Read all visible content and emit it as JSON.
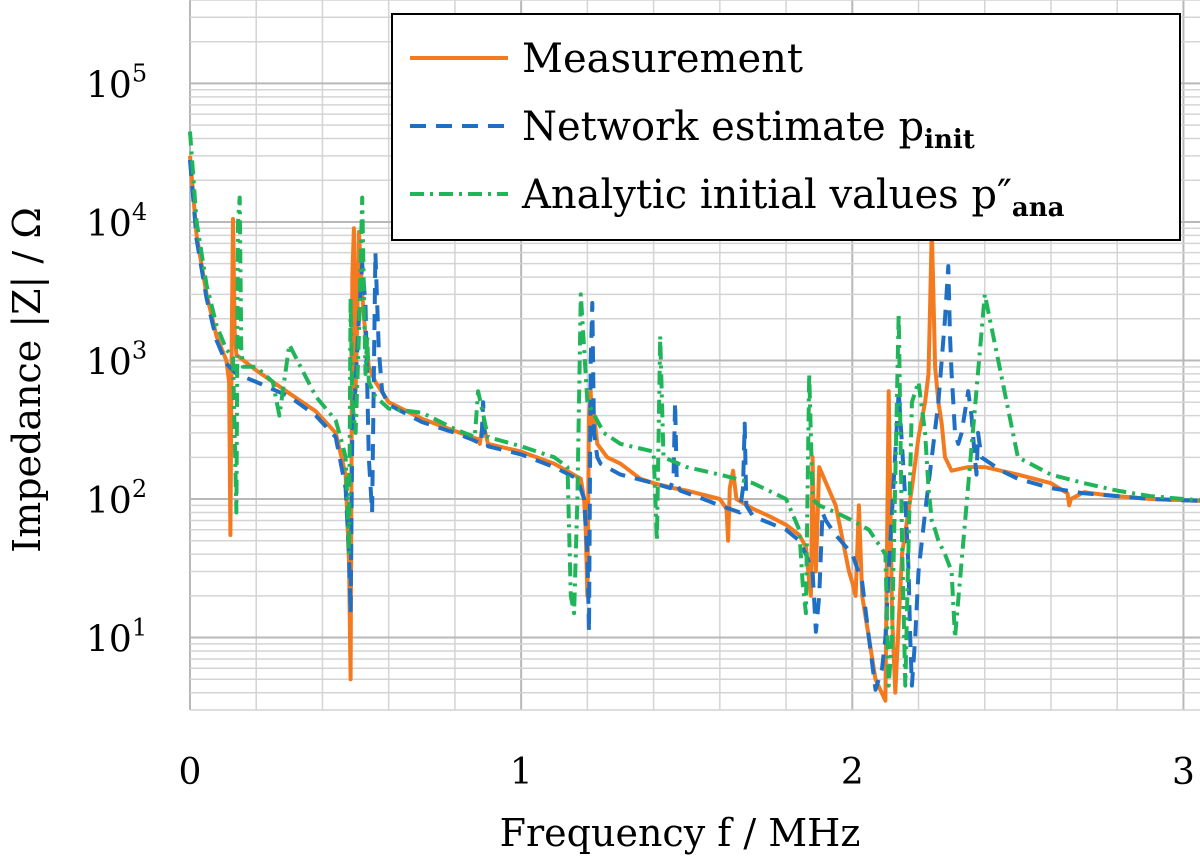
{
  "chart_data": {
    "type": "line",
    "title": "",
    "xlabel": "Frequency f / MHz",
    "ylabel": "Impedance |Z| / Ω",
    "xscale": "linear",
    "yscale": "log",
    "xlim": [
      0,
      3.05
    ],
    "ylim": [
      3,
      400000
    ],
    "xticks": [
      0,
      1,
      2,
      3
    ],
    "xtick_labels": [
      "0",
      "1",
      "2",
      "3"
    ],
    "yticks": [
      10,
      100,
      1000,
      10000,
      100000
    ],
    "ytick_labels": [
      "10",
      "10",
      "10",
      "10",
      "10"
    ],
    "ytick_exponents": [
      "1",
      "2",
      "3",
      "4",
      "5"
    ],
    "grid": true,
    "legend": {
      "position": "top-right",
      "entries": [
        {
          "label": "Measurement",
          "sub": ""
        },
        {
          "label": "Network estimate p",
          "sub": "init"
        },
        {
          "label": "Analytic initial values p″",
          "sub": "ana"
        }
      ]
    },
    "series": [
      {
        "name": "Measurement",
        "color": "#f47a20",
        "dash": "none",
        "x": [
          0.0,
          0.02,
          0.05,
          0.08,
          0.11,
          0.118,
          0.122,
          0.126,
          0.13,
          0.135,
          0.14,
          0.2,
          0.3,
          0.38,
          0.44,
          0.47,
          0.48,
          0.485,
          0.49,
          0.495,
          0.5,
          0.505,
          0.51,
          0.52,
          0.53,
          0.54,
          0.56,
          0.6,
          0.7,
          0.8,
          0.87,
          0.875,
          0.88,
          0.885,
          0.9,
          1.0,
          1.1,
          1.18,
          1.19,
          1.195,
          1.2,
          1.205,
          1.21,
          1.215,
          1.22,
          1.23,
          1.26,
          1.3,
          1.36,
          1.4,
          1.46,
          1.5,
          1.6,
          1.62,
          1.625,
          1.63,
          1.64,
          1.65,
          1.7,
          1.75,
          1.8,
          1.84,
          1.86,
          1.87,
          1.875,
          1.88,
          1.885,
          1.89,
          1.9,
          1.95,
          1.99,
          2.0,
          2.01,
          2.02,
          2.03,
          2.05,
          2.07,
          2.1,
          2.11,
          2.12,
          2.13,
          2.15,
          2.18,
          2.2,
          2.22,
          2.23,
          2.235,
          2.24,
          2.245,
          2.25,
          2.26,
          2.27,
          2.28,
          2.3,
          2.35,
          2.4,
          2.5,
          2.6,
          2.65,
          2.655,
          2.66,
          2.7,
          2.75,
          2.8,
          2.9,
          3.0,
          3.05
        ],
        "y": [
          30000,
          8000,
          3000,
          1500,
          1000,
          700,
          55,
          1300,
          10500,
          1600,
          1100,
          850,
          580,
          430,
          300,
          150,
          35,
          5,
          4000,
          9000,
          600,
          2000,
          8500,
          3000,
          1500,
          900,
          700,
          500,
          380,
          310,
          270,
          250,
          300,
          350,
          250,
          220,
          180,
          140,
          100,
          60,
          20,
          400,
          600,
          300,
          400,
          250,
          200,
          180,
          140,
          130,
          120,
          115,
          100,
          85,
          50,
          120,
          160,
          100,
          85,
          75,
          65,
          55,
          45,
          25,
          20,
          200,
          45,
          30,
          170,
          90,
          30,
          25,
          20,
          90,
          20,
          10,
          5,
          3.5,
          600,
          15,
          4,
          40,
          120,
          280,
          500,
          800,
          2500,
          9000,
          3000,
          900,
          500,
          350,
          200,
          160,
          170,
          170,
          150,
          130,
          110,
          90,
          100,
          112,
          108,
          105,
          100,
          98,
          97
        ]
      },
      {
        "name": "Network estimate p_init",
        "color": "#1f6fc5",
        "dash": "16,10",
        "x": [
          0.0,
          0.02,
          0.05,
          0.08,
          0.11,
          0.14,
          0.2,
          0.3,
          0.38,
          0.44,
          0.47,
          0.48,
          0.485,
          0.49,
          0.5,
          0.51,
          0.52,
          0.53,
          0.54,
          0.55,
          0.56,
          0.57,
          0.58,
          0.6,
          0.7,
          0.8,
          0.85,
          0.88,
          0.885,
          0.89,
          0.9,
          1.0,
          1.1,
          1.17,
          1.19,
          1.2,
          1.205,
          1.21,
          1.215,
          1.22,
          1.23,
          1.24,
          1.3,
          1.4,
          1.45,
          1.46,
          1.465,
          1.47,
          1.48,
          1.55,
          1.6,
          1.66,
          1.67,
          1.675,
          1.68,
          1.7,
          1.8,
          1.84,
          1.86,
          1.88,
          1.89,
          1.9,
          1.91,
          1.92,
          1.95,
          2.0,
          2.03,
          2.05,
          2.07,
          2.09,
          2.1,
          2.11,
          2.12,
          2.14,
          2.16,
          2.17,
          2.175,
          2.18,
          2.19,
          2.2,
          2.22,
          2.24,
          2.26,
          2.28,
          2.29,
          2.295,
          2.3,
          2.305,
          2.31,
          2.32,
          2.33,
          2.35,
          2.36,
          2.37,
          2.375,
          2.38,
          2.39,
          2.45,
          2.5,
          2.6,
          2.7,
          2.8,
          2.9,
          3.0,
          3.05
        ],
        "y": [
          28000,
          7500,
          2800,
          1400,
          950,
          800,
          700,
          550,
          400,
          280,
          120,
          40,
          15,
          300,
          700,
          2000,
          5000,
          2500,
          200,
          80,
          6000,
          1200,
          600,
          480,
          360,
          300,
          270,
          250,
          500,
          300,
          240,
          210,
          170,
          140,
          100,
          40,
          11,
          1000,
          2600,
          300,
          200,
          180,
          150,
          130,
          120,
          140,
          500,
          130,
          115,
          100,
          90,
          80,
          120,
          350,
          90,
          75,
          60,
          50,
          40,
          30,
          11,
          20,
          80,
          70,
          55,
          40,
          25,
          10,
          4.2,
          6,
          10,
          30,
          80,
          600,
          100,
          30,
          10,
          4.5,
          10,
          30,
          80,
          200,
          500,
          2000,
          4800,
          1500,
          800,
          500,
          300,
          250,
          300,
          600,
          400,
          200,
          150,
          300,
          200,
          160,
          140,
          120,
          110,
          105,
          100,
          98,
          97
        ]
      },
      {
        "name": "Analytic initial values p''_ana",
        "color": "#21b55a",
        "dash": "14,6,3,6",
        "x": [
          0.0,
          0.02,
          0.05,
          0.08,
          0.11,
          0.13,
          0.14,
          0.145,
          0.15,
          0.155,
          0.16,
          0.2,
          0.25,
          0.27,
          0.3,
          0.38,
          0.44,
          0.46,
          0.47,
          0.475,
          0.48,
          0.485,
          0.49,
          0.5,
          0.51,
          0.52,
          0.525,
          0.53,
          0.535,
          0.54,
          0.56,
          0.6,
          0.7,
          0.8,
          0.86,
          0.87,
          0.9,
          1.0,
          1.1,
          1.14,
          1.15,
          1.16,
          1.17,
          1.18,
          1.2,
          1.25,
          1.3,
          1.4,
          1.41,
          1.42,
          1.43,
          1.5,
          1.6,
          1.7,
          1.8,
          1.84,
          1.85,
          1.86,
          1.87,
          1.88,
          1.9,
          1.95,
          2.0,
          2.05,
          2.1,
          2.11,
          2.12,
          2.14,
          2.15,
          2.16,
          2.18,
          2.2,
          2.22,
          2.23,
          2.24,
          2.25,
          2.26,
          2.28,
          2.3,
          2.31,
          2.4,
          2.5,
          2.6,
          2.7,
          2.8,
          2.9,
          3.0,
          3.05
        ],
        "y": [
          45000,
          10000,
          3500,
          1800,
          1200,
          1050,
          80,
          10000,
          15000,
          1200,
          900,
          900,
          700,
          400,
          1300,
          550,
          370,
          250,
          200,
          100,
          40,
          2800,
          500,
          300,
          1500,
          15000,
          3000,
          800,
          1500,
          700,
          550,
          450,
          420,
          320,
          280,
          600,
          280,
          240,
          200,
          170,
          20,
          15,
          100,
          3000,
          500,
          300,
          250,
          220,
          50,
          1500,
          200,
          170,
          150,
          130,
          100,
          60,
          25,
          15,
          800,
          100,
          90,
          80,
          70,
          60,
          40,
          4.5,
          10,
          2200,
          50,
          4.5,
          500,
          700,
          300,
          120,
          70,
          60,
          50,
          40,
          30,
          10,
          3000,
          200,
          150,
          130,
          115,
          105,
          100,
          98
        ]
      }
    ]
  }
}
